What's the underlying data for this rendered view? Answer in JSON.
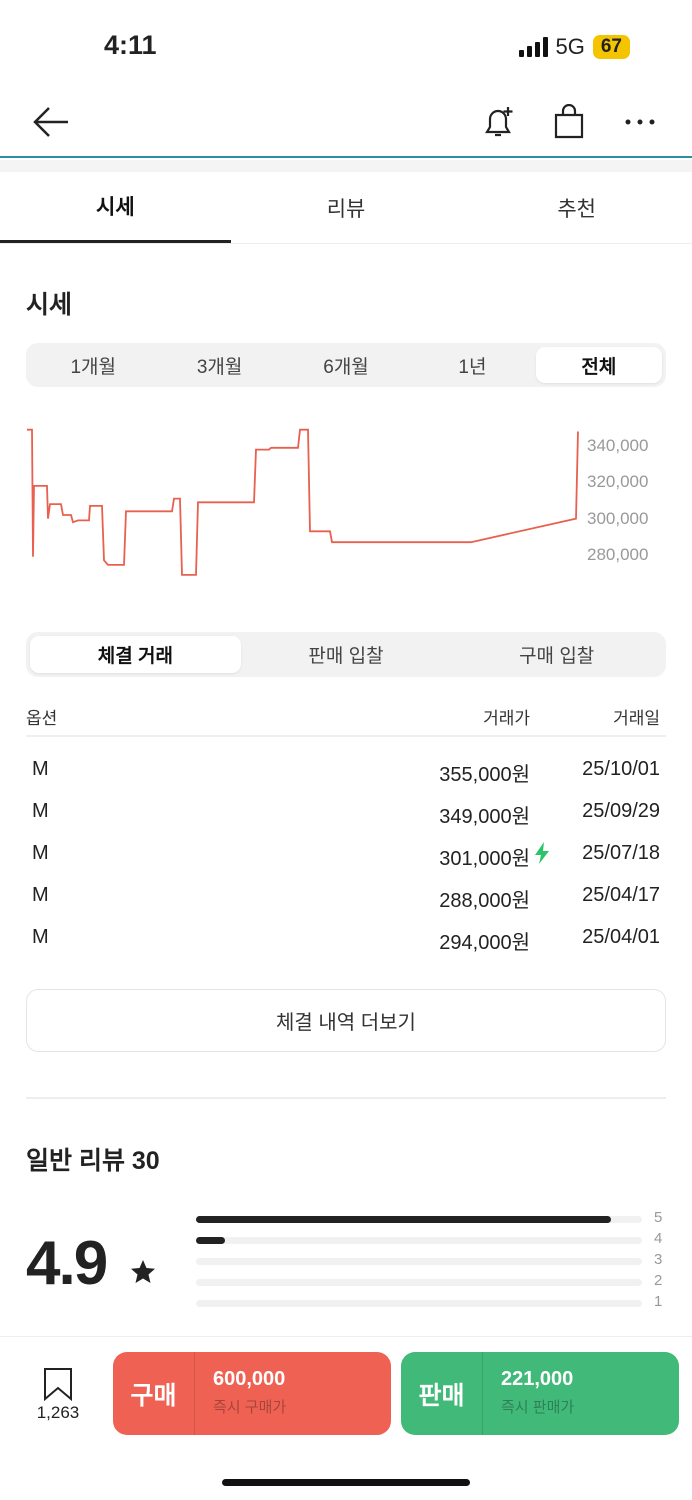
{
  "status": {
    "time": "4:11",
    "network": "5G",
    "battery": "67"
  },
  "nav": {
    "back_icon": "arrow-left-icon",
    "bell_icon": "bell-plus-icon",
    "bag_icon": "shopping-bag-icon",
    "more_icon": "ellipsis-icon"
  },
  "tabs": [
    {
      "label": "시세",
      "active": true
    },
    {
      "label": "리뷰"
    },
    {
      "label": "추천"
    }
  ],
  "price_section": {
    "title": "시세",
    "periods": [
      "1개월",
      "3개월",
      "6개월",
      "1년",
      "전체"
    ],
    "selected_period": "전체"
  },
  "chart_data": {
    "type": "line",
    "style": "step",
    "color": "#e8604f",
    "y_ticks": [
      "340,000",
      "320,000",
      "300,000",
      "280,000"
    ],
    "ylim": [
      265000,
      352000
    ],
    "grid": false,
    "prices": [
      349000,
      349000,
      279000,
      318000,
      318000,
      300000,
      308000,
      308000,
      302000,
      302000,
      298000,
      299000,
      299000,
      307000,
      307000,
      277000,
      274500,
      274500,
      304000,
      304000,
      311000,
      311000,
      269000,
      269000,
      309000,
      309000,
      338000,
      338000,
      339000,
      339000,
      349000,
      349000,
      293000,
      293000,
      287000,
      287000,
      300000,
      348000
    ]
  },
  "trade_tabs": [
    "체결 거래",
    "판매 입찰",
    "구매 입찰"
  ],
  "table": {
    "headers": [
      "옵션",
      "거래가",
      "거래일"
    ],
    "rows": [
      {
        "option": "M",
        "price": "355,000원",
        "date": "25/10/01",
        "flash": false
      },
      {
        "option": "M",
        "price": "349,000원",
        "date": "25/09/29",
        "flash": false
      },
      {
        "option": "M",
        "price": "301,000원",
        "date": "25/07/18",
        "flash": true
      },
      {
        "option": "M",
        "price": "288,000원",
        "date": "25/04/17",
        "flash": false
      },
      {
        "option": "M",
        "price": "294,000원",
        "date": "25/04/01",
        "flash": false
      }
    ]
  },
  "more_label": "체결 내역 더보기",
  "review": {
    "title": "일반 리뷰 30",
    "rating": "4.9",
    "star_icon": "star-icon",
    "distribution": [
      {
        "label": "5",
        "fraction": 0.93
      },
      {
        "label": "4",
        "fraction": 0.065
      },
      {
        "label": "3",
        "fraction": 0
      },
      {
        "label": "2",
        "fraction": 0
      },
      {
        "label": "1",
        "fraction": 0
      }
    ]
  },
  "bottom": {
    "bookmark_count": "1,263",
    "buy": {
      "label": "구매",
      "price": "600,000",
      "sub": "즉시 구매가",
      "color": "#ef6253"
    },
    "sell": {
      "label": "판매",
      "price": "221,000",
      "sub": "즉시 판매가",
      "color": "#41b979"
    }
  }
}
